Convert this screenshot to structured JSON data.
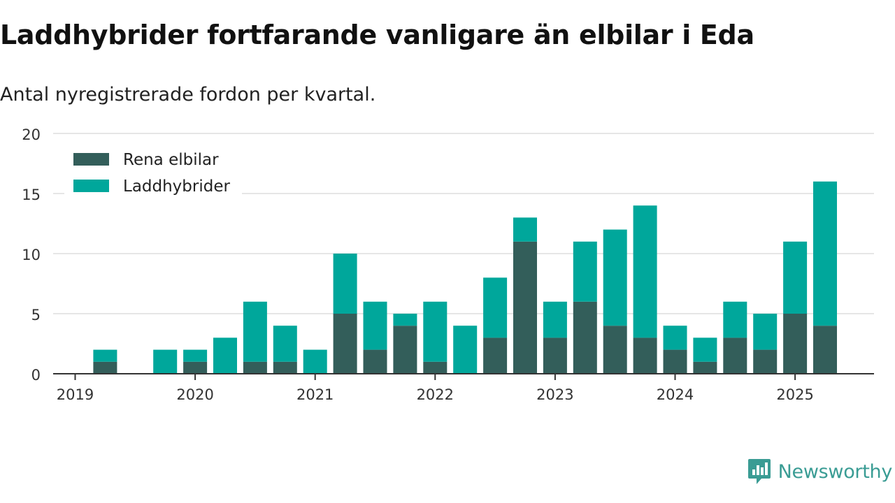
{
  "title": "Laddhybrider fortfarande vanligare än elbilar i Eda",
  "subtitle": "Antal nyregistrerade fordon per kvartal.",
  "brand": {
    "name": "Newsworthy",
    "icon": "newsworthy-chart-icon",
    "color": "#3a9c94"
  },
  "chart_data": {
    "type": "bar",
    "stacked": true,
    "x": [
      "2019-Q1",
      "2019-Q2",
      "2019-Q3",
      "2019-Q4",
      "2020-Q1",
      "2020-Q2",
      "2020-Q3",
      "2020-Q4",
      "2021-Q1",
      "2021-Q2",
      "2021-Q3",
      "2021-Q4",
      "2022-Q1",
      "2022-Q2",
      "2022-Q3",
      "2022-Q4",
      "2023-Q1",
      "2023-Q2",
      "2023-Q3",
      "2023-Q4",
      "2024-Q1",
      "2024-Q2",
      "2024-Q3",
      "2024-Q4",
      "2025-Q1",
      "2025-Q2"
    ],
    "x_tick_labels": [
      "2019",
      "2020",
      "2021",
      "2022",
      "2023",
      "2024",
      "2025"
    ],
    "series": [
      {
        "name": "Rena elbilar",
        "color": "#335e5a",
        "values": [
          0,
          1,
          0,
          0,
          1,
          0,
          1,
          1,
          0,
          5,
          2,
          4,
          1,
          0,
          3,
          11,
          3,
          6,
          4,
          3,
          2,
          1,
          3,
          2,
          5,
          4
        ]
      },
      {
        "name": "Laddhybrider",
        "color": "#00a79b",
        "values": [
          0,
          1,
          0,
          2,
          1,
          3,
          5,
          3,
          2,
          5,
          4,
          1,
          5,
          4,
          5,
          2,
          3,
          5,
          8,
          11,
          2,
          2,
          3,
          3,
          6,
          12
        ]
      }
    ],
    "ylim": [
      0,
      20
    ],
    "yticks": [
      0,
      5,
      10,
      15,
      20
    ],
    "grid": true,
    "legend": "top-left"
  }
}
